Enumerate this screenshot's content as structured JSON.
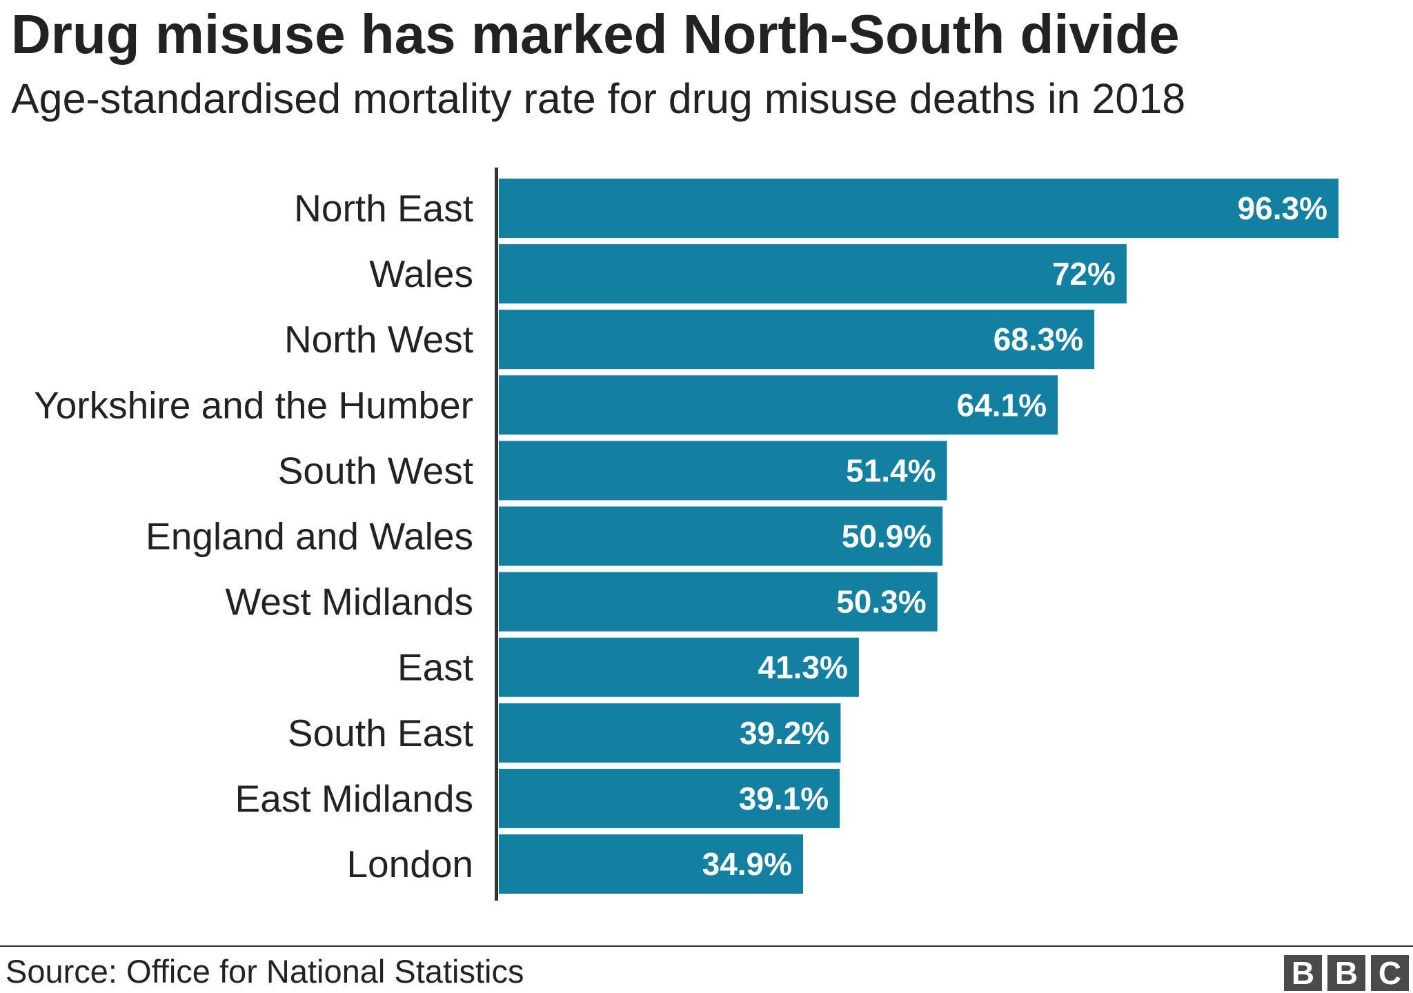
{
  "header": {
    "title": "Drug misuse has marked North-South divide",
    "subtitle": "Age-standardised mortality rate for drug misuse deaths in 2018"
  },
  "footer": {
    "source": "Source: Office for National Statistics",
    "logo": [
      "B",
      "B",
      "C"
    ]
  },
  "colors": {
    "bar": "#1380A1",
    "axis": "#333333"
  },
  "chart_data": {
    "type": "bar",
    "orientation": "horizontal",
    "title": "Drug misuse has marked North-South divide",
    "subtitle": "Age-standardised mortality rate for drug misuse deaths in 2018",
    "categories": [
      "North East",
      "Wales",
      "North West",
      "Yorkshire and the Humber",
      "South West",
      "England and Wales",
      "West Midlands",
      "East",
      "South East",
      "East Midlands",
      "London"
    ],
    "values": [
      96.3,
      72,
      68.3,
      64.1,
      51.4,
      50.9,
      50.3,
      41.3,
      39.2,
      39.1,
      34.9
    ],
    "value_labels": [
      "96.3%",
      "72%",
      "68.3%",
      "64.1%",
      "51.4%",
      "50.9%",
      "50.3%",
      "41.3%",
      "39.2%",
      "39.1%",
      "34.9%"
    ],
    "xlim": [
      0,
      96.3
    ],
    "grid": false,
    "legend": "none"
  }
}
